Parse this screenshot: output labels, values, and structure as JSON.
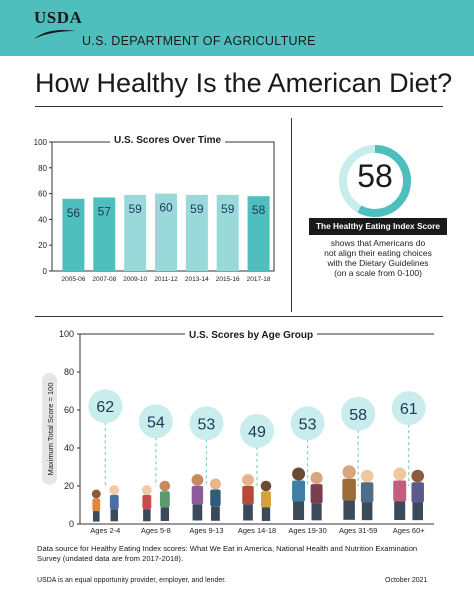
{
  "header": {
    "logo_text": "USDA",
    "department": "U.S. DEPARTMENT OF AGRICULTURE"
  },
  "title": "How Healthy Is the American Diet?",
  "hei": {
    "score": "58",
    "label": "The Healthy Eating Index Score",
    "description_lines": [
      "shows that Americans do",
      "not align their eating choices",
      "with the Dietary Guidelines",
      "(on a scale from 0-100)"
    ]
  },
  "footnote": "Data source for Healthy Eating Index scores: What We Eat in America, National Health and Nutrition Examination Survey (undated data are from 2017-2018).",
  "footer": {
    "left": "USDA is an equal opportunity provider, employer, and lender.",
    "right": "October 2021"
  },
  "colors": {
    "teal": "#4fbfbd",
    "bar_dark": "#4fbfbd",
    "bar_light": "#9ad9d9",
    "bubble": "#c9ecec",
    "ring": "#4fbfbd",
    "ring_track": "#c9ecec"
  },
  "chart_data": [
    {
      "type": "bar",
      "title": "U.S. Scores Over Time",
      "categories": [
        "2005-06",
        "2007-08",
        "2009-10",
        "2011-12",
        "2013-14",
        "2015-16",
        "2017-18"
      ],
      "values": [
        56,
        57,
        59,
        60,
        59,
        59,
        58
      ],
      "ylim": [
        0,
        100
      ],
      "yticks": [
        0,
        20,
        40,
        60,
        80,
        100
      ],
      "xlabel": "",
      "ylabel": ""
    },
    {
      "type": "scatter",
      "title": "U.S. Scores by Age Group",
      "categories": [
        "Ages 2-4",
        "Ages 5-8",
        "Ages 9-13",
        "Ages 14-18",
        "Ages 19-30",
        "Ages 31-59",
        "Ages 60+"
      ],
      "values": [
        62,
        54,
        53,
        49,
        53,
        58,
        61
      ],
      "ylim": [
        0,
        100
      ],
      "yticks": [
        0,
        20,
        40,
        60,
        80,
        100
      ],
      "ylabel": "Maximum Total Score = 100",
      "xlabel": ""
    }
  ]
}
